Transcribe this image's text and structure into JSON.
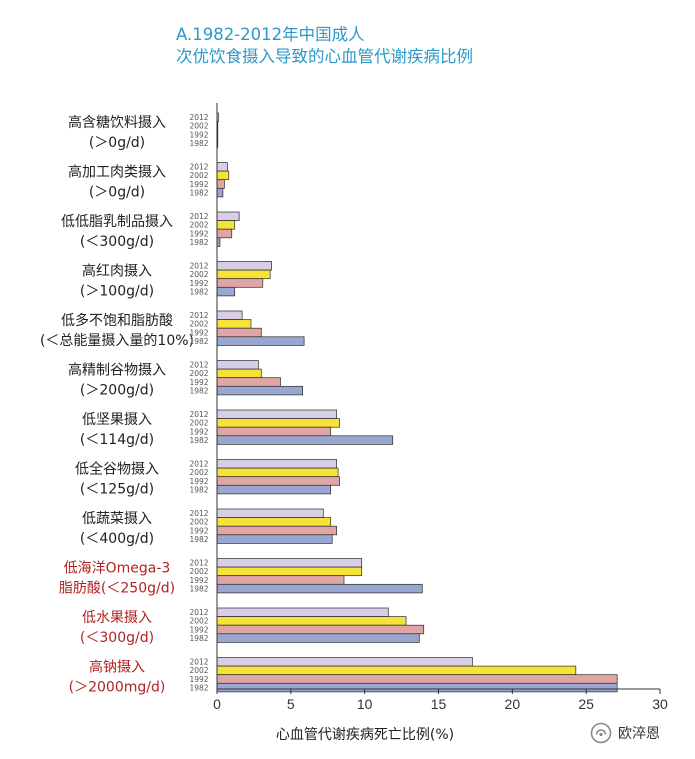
{
  "title_lines": [
    "A.1982-2012年中国成人",
    "次优饮食摄入导致的心血管代谢疾病比例"
  ],
  "watermark": {
    "text": "欧淬恩",
    "icon": "wechat-official-account-icon"
  },
  "colors": {
    "2012": "#d8cfe6",
    "2002": "#f7e23a",
    "1992": "#e0a6a6",
    "1982": "#99a6cf",
    "label_default": "#222222",
    "label_highlight": "#b22222",
    "title": "#2b9ac8"
  },
  "chart_data": {
    "type": "bar",
    "orientation": "horizontal",
    "title": "A.1982-2012年中国成人 次优饮食摄入导致的心血管代谢疾病比例",
    "xlabel": "心血管代谢疾病死亡比例(%)",
    "ylabel": "",
    "xlim": [
      0,
      30
    ],
    "x_ticks": [
      0,
      5,
      10,
      15,
      20,
      25,
      30
    ],
    "grid": false,
    "years": [
      "2012",
      "2002",
      "1992",
      "1982"
    ],
    "categories": [
      {
        "label": [
          "高含糖饮料摄入",
          "(＞0g/d)"
        ],
        "highlight": false,
        "values": [
          0.1,
          0.05,
          0.0,
          0.0
        ]
      },
      {
        "label": [
          "高加工肉类摄入",
          "(＞0g/d)"
        ],
        "highlight": false,
        "values": [
          0.7,
          0.8,
          0.5,
          0.4
        ]
      },
      {
        "label": [
          "低低脂乳制品摄入",
          "(＜300g/d)"
        ],
        "highlight": false,
        "values": [
          1.5,
          1.2,
          1.0,
          0.2
        ]
      },
      {
        "label": [
          "高红肉摄入",
          "(＞100g/d)"
        ],
        "highlight": false,
        "values": [
          3.7,
          3.6,
          3.1,
          1.2
        ]
      },
      {
        "label": [
          "低多不饱和脂肪酸",
          "(＜总能量摄入量的10%)"
        ],
        "highlight": false,
        "values": [
          1.7,
          2.3,
          3.0,
          5.9
        ]
      },
      {
        "label": [
          "高精制谷物摄入",
          "(＞200g/d)"
        ],
        "highlight": false,
        "values": [
          2.8,
          3.0,
          4.3,
          5.8
        ]
      },
      {
        "label": [
          "低坚果摄入",
          "(＜114g/d)"
        ],
        "highlight": false,
        "values": [
          8.1,
          8.3,
          7.7,
          11.9
        ]
      },
      {
        "label": [
          "低全谷物摄入",
          "(＜125g/d)"
        ],
        "highlight": false,
        "values": [
          8.1,
          8.2,
          8.3,
          7.7
        ]
      },
      {
        "label": [
          "低蔬菜摄入",
          "(＜400g/d)"
        ],
        "highlight": false,
        "values": [
          7.2,
          7.7,
          8.1,
          7.8
        ]
      },
      {
        "label": [
          "低海洋Omega-3",
          "脂肪酸(＜250g/d)"
        ],
        "highlight": true,
        "values": [
          9.8,
          9.8,
          8.6,
          13.9
        ]
      },
      {
        "label": [
          "低水果摄入",
          "(＜300g/d)"
        ],
        "highlight": true,
        "values": [
          11.6,
          12.8,
          14.0,
          13.7
        ]
      },
      {
        "label": [
          "高钠摄入",
          "(＞2000mg/d)"
        ],
        "highlight": true,
        "values": [
          17.3,
          24.3,
          27.1,
          27.1
        ]
      }
    ]
  }
}
